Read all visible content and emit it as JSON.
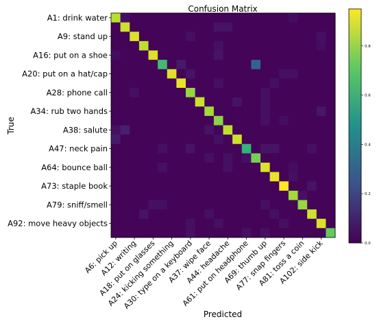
{
  "chart_data": {
    "type": "heatmap",
    "title": "Confusion Matrix",
    "xlabel": "Predicted",
    "ylabel": "True",
    "y_tick_labels": [
      "A1: drink water",
      "A9: stand up",
      "A16: put on a shoe",
      "A20: put on a hat/cap",
      "A28: phone call",
      "A34: rub two hands",
      "A38: salute",
      "A47: neck pain",
      "A64: bounce ball",
      "A73: staple book",
      "A79: sniff/smell",
      "A92: move heavy objects"
    ],
    "x_tick_labels": [
      "A6: pick up",
      "A12: writing",
      "A18: put on glasses",
      "A24: kicking something",
      "A30: type on a keyboard",
      "A37: wipe face",
      "A44: headache",
      "A61: put on headphone",
      "A69: thumb up",
      "A77: snap fingers",
      "A81: toss a coin",
      "A102: side kick"
    ],
    "n_classes": 24,
    "diagonal": [
      0.85,
      0.88,
      0.9,
      0.86,
      0.9,
      0.65,
      0.9,
      0.92,
      0.8,
      0.88,
      0.82,
      0.78,
      0.86,
      0.88,
      0.62,
      0.75,
      0.9,
      0.92,
      0.95,
      0.82,
      0.8,
      0.88,
      0.9,
      0.72
    ],
    "off_diagonal": [
      {
        "row": 0,
        "col": 1,
        "value": 0.05
      },
      {
        "row": 0,
        "col": 19,
        "value": 0.04
      },
      {
        "row": 1,
        "col": 11,
        "value": 0.06
      },
      {
        "row": 1,
        "col": 12,
        "value": 0.06
      },
      {
        "row": 2,
        "col": 8,
        "value": 0.05
      },
      {
        "row": 2,
        "col": 22,
        "value": 0.05
      },
      {
        "row": 3,
        "col": 11,
        "value": 0.05
      },
      {
        "row": 3,
        "col": 22,
        "value": 0.04
      },
      {
        "row": 4,
        "col": 0,
        "value": 0.04
      },
      {
        "row": 4,
        "col": 11,
        "value": 0.06
      },
      {
        "row": 5,
        "col": 15,
        "value": 0.3
      },
      {
        "row": 5,
        "col": 7,
        "value": 0.08
      },
      {
        "row": 6,
        "col": 8,
        "value": 0.06
      },
      {
        "row": 6,
        "col": 18,
        "value": 0.05
      },
      {
        "row": 6,
        "col": 19,
        "value": 0.05
      },
      {
        "row": 7,
        "col": 11,
        "value": 0.05
      },
      {
        "row": 7,
        "col": 17,
        "value": 0.05
      },
      {
        "row": 8,
        "col": 2,
        "value": 0.05
      },
      {
        "row": 8,
        "col": 16,
        "value": 0.05
      },
      {
        "row": 9,
        "col": 13,
        "value": 0.06
      },
      {
        "row": 9,
        "col": 16,
        "value": 0.05
      },
      {
        "row": 10,
        "col": 16,
        "value": 0.05
      },
      {
        "row": 10,
        "col": 22,
        "value": 0.07
      },
      {
        "row": 11,
        "col": 16,
        "value": 0.05
      },
      {
        "row": 11,
        "col": 18,
        "value": 0.04
      },
      {
        "row": 12,
        "col": 0,
        "value": 0.05
      },
      {
        "row": 12,
        "col": 1,
        "value": 0.1
      },
      {
        "row": 12,
        "col": 10,
        "value": 0.06
      },
      {
        "row": 13,
        "col": 0,
        "value": 0.08
      },
      {
        "row": 13,
        "col": 11,
        "value": 0.05
      },
      {
        "row": 14,
        "col": 5,
        "value": 0.05
      },
      {
        "row": 14,
        "col": 8,
        "value": 0.06
      },
      {
        "row": 14,
        "col": 16,
        "value": 0.06
      },
      {
        "row": 14,
        "col": 17,
        "value": 0.06
      },
      {
        "row": 14,
        "col": 21,
        "value": 0.05
      },
      {
        "row": 15,
        "col": 10,
        "value": 0.05
      },
      {
        "row": 15,
        "col": 12,
        "value": 0.05
      },
      {
        "row": 15,
        "col": 14,
        "value": 0.05
      },
      {
        "row": 16,
        "col": 5,
        "value": 0.05
      },
      {
        "row": 16,
        "col": 12,
        "value": 0.05
      },
      {
        "row": 16,
        "col": 19,
        "value": 0.04
      },
      {
        "row": 17,
        "col": 19,
        "value": 0.05
      },
      {
        "row": 18,
        "col": 21,
        "value": 0.06
      },
      {
        "row": 19,
        "col": 20,
        "value": 0.05
      },
      {
        "row": 20,
        "col": 4,
        "value": 0.05
      },
      {
        "row": 20,
        "col": 5,
        "value": 0.05
      },
      {
        "row": 20,
        "col": 16,
        "value": 0.05
      },
      {
        "row": 21,
        "col": 3,
        "value": 0.06
      },
      {
        "row": 21,
        "col": 10,
        "value": 0.05
      },
      {
        "row": 21,
        "col": 17,
        "value": 0.05
      },
      {
        "row": 22,
        "col": 8,
        "value": 0.05
      },
      {
        "row": 22,
        "col": 11,
        "value": 0.05
      },
      {
        "row": 22,
        "col": 18,
        "value": 0.05
      },
      {
        "row": 23,
        "col": 8,
        "value": 0.05
      },
      {
        "row": 23,
        "col": 14,
        "value": 0.05
      },
      {
        "row": 23,
        "col": 16,
        "value": 0.05
      }
    ],
    "colormap": "viridis",
    "colorbar_ticks": [
      "0.0",
      "0.2",
      "0.4",
      "0.6",
      "0.8"
    ],
    "colorbar_range": [
      0,
      0.95
    ]
  }
}
